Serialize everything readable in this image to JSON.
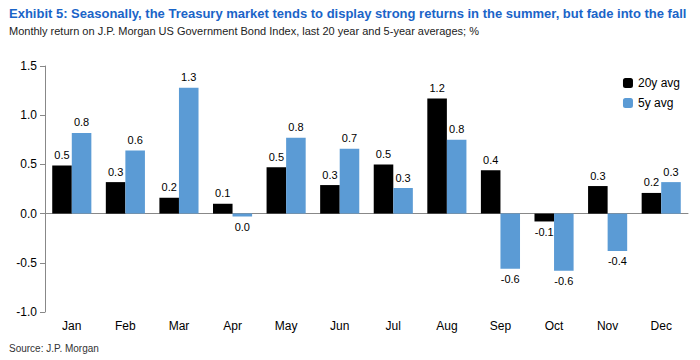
{
  "chart_data": {
    "type": "bar",
    "title": "Exhibit 5: Seasonally, the Treasury market tends to display strong returns in the summer, but fade into the fall",
    "subtitle": "Monthly return on J.P. Morgan US Government Bond Index, last 20 year and 5-year averages; %",
    "source": "Source: J.P. Morgan",
    "categories": [
      "Jan",
      "Feb",
      "Mar",
      "Apr",
      "May",
      "Jun",
      "Jul",
      "Aug",
      "Sep",
      "Oct",
      "Nov",
      "Dec"
    ],
    "series": [
      {
        "name": "20y avg",
        "color": "#000000",
        "values": [
          0.49,
          0.32,
          0.16,
          0.1,
          0.47,
          0.29,
          0.5,
          1.17,
          0.44,
          -0.08,
          0.28,
          0.21
        ],
        "value_labels": [
          "0.5",
          "0.3",
          "0.2",
          "0.1",
          "0.5",
          "0.3",
          "0.5",
          "1.2",
          "0.4",
          "-0.1",
          "0.3",
          "0.2"
        ]
      },
      {
        "name": "5y avg",
        "color": "#5b9bd5",
        "values": [
          0.82,
          0.64,
          1.28,
          -0.03,
          0.77,
          0.66,
          0.26,
          0.75,
          -0.56,
          -0.58,
          -0.38,
          0.32
        ],
        "value_labels": [
          "0.8",
          "0.6",
          "1.3",
          "0.0",
          "0.8",
          "0.7",
          "0.3",
          "0.8",
          "-0.6",
          "-0.6",
          "-0.4",
          "0.3"
        ]
      }
    ],
    "ylim": [
      -1.0,
      1.5
    ],
    "yticks": [
      {
        "value": -1.0,
        "label": "-1.0"
      },
      -0.5,
      {
        "value": 0.0,
        "label": "0.0"
      },
      0.5,
      {
        "value": 1.0,
        "label": "1.0"
      },
      1.5
    ],
    "grid": false,
    "legend": "upper right",
    "data_labels": true
  }
}
